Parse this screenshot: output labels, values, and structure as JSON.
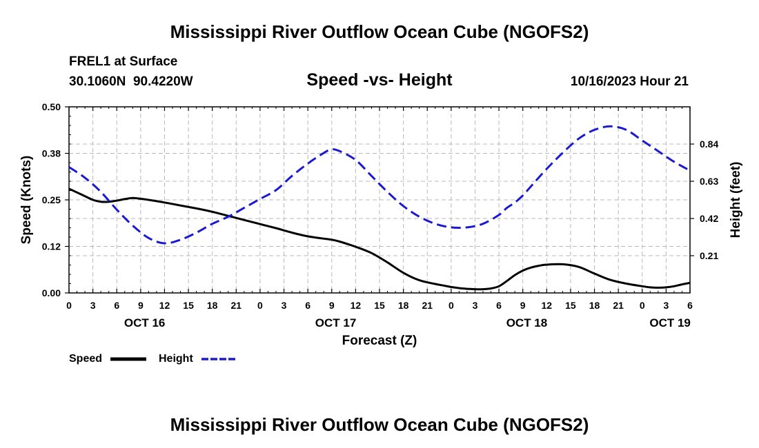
{
  "chart_data": {
    "type": "line",
    "title": "Mississippi River Outflow Ocean Cube (NGOFS2)",
    "station": "FREL1 at Surface",
    "coords": "30.1060N  90.4220W",
    "subtitle": "Speed -vs- Height",
    "timestamp": "10/16/2023 Hour 21",
    "xlabel": "Forecast (Z)",
    "ylabel_left": "Speed (Knots)",
    "ylabel_right": "Height (feet)",
    "x_range_hours": [
      0,
      78
    ],
    "x_tick_labels": [
      "0",
      "3",
      "6",
      "9",
      "12",
      "15",
      "18",
      "21",
      "0",
      "3",
      "6",
      "9",
      "12",
      "15",
      "18",
      "21",
      "0",
      "3",
      "6",
      "9",
      "12",
      "15",
      "18",
      "21",
      "0",
      "3",
      "6"
    ],
    "day_labels": [
      {
        "label": "OCT 16",
        "hour": 9.5
      },
      {
        "label": "OCT 17",
        "hour": 33.5
      },
      {
        "label": "OCT 18",
        "hour": 57.5
      },
      {
        "label": "OCT 19",
        "hour": 75.5
      }
    ],
    "ylim_left": [
      0,
      0.5
    ],
    "y_ticks_left": [
      {
        "value": 0.0,
        "label": "0.00"
      },
      {
        "value": 0.125,
        "label": "0.12"
      },
      {
        "value": 0.25,
        "label": "0.25"
      },
      {
        "value": 0.375,
        "label": "0.38"
      },
      {
        "value": 0.5,
        "label": "0.50"
      }
    ],
    "ylim_right": [
      0.0,
      1.05
    ],
    "y_ticks_right": [
      {
        "value": 0.21,
        "label": "0.21"
      },
      {
        "value": 0.42,
        "label": "0.42"
      },
      {
        "value": 0.63,
        "label": "0.63"
      },
      {
        "value": 0.84,
        "label": "0.84"
      }
    ],
    "legend": [
      "Speed",
      "Height"
    ],
    "series": [
      {
        "name": "Speed",
        "axis": "left",
        "color": "#000000",
        "x": [
          0,
          1,
          2,
          3,
          4,
          5,
          6,
          7,
          8,
          9,
          10,
          12,
          14,
          16,
          18,
          20,
          22,
          24,
          26,
          28,
          30,
          32,
          33,
          34,
          36,
          38,
          40,
          42,
          44,
          46,
          47,
          48,
          49,
          50,
          51,
          52,
          53,
          54,
          55,
          56,
          57,
          58,
          59,
          60,
          62,
          64,
          66,
          68,
          70,
          72,
          73,
          74,
          75,
          76,
          77,
          78
        ],
        "values": [
          0.28,
          0.27,
          0.26,
          0.25,
          0.245,
          0.245,
          0.248,
          0.252,
          0.255,
          0.253,
          0.25,
          0.243,
          0.235,
          0.227,
          0.218,
          0.207,
          0.196,
          0.185,
          0.174,
          0.162,
          0.152,
          0.146,
          0.143,
          0.138,
          0.124,
          0.107,
          0.082,
          0.054,
          0.034,
          0.024,
          0.02,
          0.016,
          0.013,
          0.011,
          0.01,
          0.01,
          0.012,
          0.018,
          0.032,
          0.048,
          0.06,
          0.068,
          0.073,
          0.076,
          0.077,
          0.07,
          0.052,
          0.035,
          0.025,
          0.018,
          0.015,
          0.014,
          0.015,
          0.018,
          0.023,
          0.027
        ]
      },
      {
        "name": "Height",
        "axis": "right",
        "color": "#1a1ad0",
        "x": [
          0,
          2,
          4,
          6,
          8,
          10,
          12,
          14,
          16,
          18,
          20,
          22,
          24,
          26,
          28,
          30,
          32,
          33,
          34,
          36,
          38,
          40,
          42,
          44,
          46,
          48,
          50,
          52,
          54,
          55,
          56,
          57,
          58,
          60,
          62,
          64,
          66,
          68,
          70,
          72,
          74,
          76,
          78
        ],
        "values": [
          0.71,
          0.65,
          0.57,
          0.47,
          0.38,
          0.31,
          0.28,
          0.3,
          0.34,
          0.39,
          0.43,
          0.48,
          0.53,
          0.58,
          0.66,
          0.73,
          0.79,
          0.81,
          0.8,
          0.75,
          0.66,
          0.57,
          0.49,
          0.43,
          0.39,
          0.37,
          0.37,
          0.39,
          0.44,
          0.48,
          0.51,
          0.55,
          0.6,
          0.7,
          0.79,
          0.87,
          0.92,
          0.94,
          0.92,
          0.86,
          0.8,
          0.74,
          0.69
        ]
      }
    ]
  },
  "footer_title": "Mississippi River Outflow Ocean Cube (NGOFS2)"
}
